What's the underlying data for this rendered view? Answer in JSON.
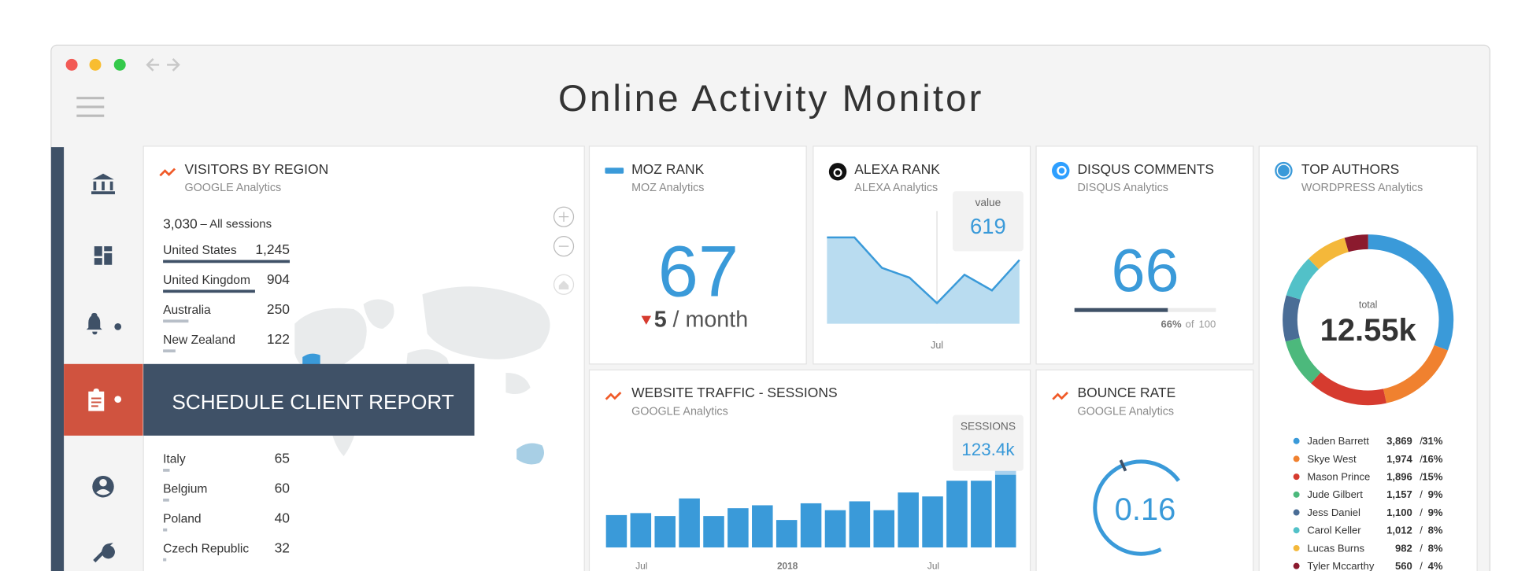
{
  "window": {
    "title": "Online Activity Monitor"
  },
  "sidebar": {
    "active_item": "SCHEDULE CLIENT REPORT"
  },
  "visitors_by_region": {
    "title": "VISITORS BY REGION",
    "source": "GOOGLE Analytics",
    "total": 3030,
    "total_label": "3,030",
    "total_caption": "– All sessions",
    "regions": [
      "United States",
      "United Kingdom",
      "Australia",
      "New Zealand",
      "Italy",
      "Belgium",
      "Poland",
      "Czech Republic"
    ],
    "values": [
      1245,
      904,
      250,
      122,
      65,
      60,
      40,
      32
    ],
    "value_labels": [
      "1,245",
      "904",
      "250",
      "122",
      "65",
      "60",
      "40",
      "32"
    ]
  },
  "moz_rank": {
    "title": "MOZ RANK",
    "source": "MOZ Analytics",
    "value": 67,
    "change": 5,
    "change_unit": "/ month"
  },
  "alexa_rank": {
    "title": "ALEXA RANK",
    "source": "ALEXA Analytics",
    "tooltip_label": "value",
    "tooltip_value": 619,
    "categories": [
      null,
      null,
      null,
      null,
      "Jul",
      null,
      null,
      null
    ],
    "values": [
      954,
      954,
      799,
      749,
      619,
      764,
      684,
      839
    ]
  },
  "disqus_comments": {
    "title": "DISQUS COMMENTS",
    "source": "DISQUS Analytics",
    "value": 66,
    "progress_label": "66%",
    "of_label": "of",
    "max": 100
  },
  "website_traffic": {
    "title": "WEBSITE TRAFFIC - SESSIONS",
    "source": "GOOGLE Analytics",
    "tooltip_label": "SESSIONS",
    "tooltip_value": 123.4,
    "tooltip_value_label": "123.4k",
    "categories": [
      null,
      "Jul",
      null,
      null,
      null,
      null,
      null,
      "2018",
      null,
      null,
      null,
      null,
      null,
      "Jul",
      null,
      null,
      null
    ],
    "values": [
      50.9,
      54.0,
      49.4,
      77.1,
      49.4,
      61.7,
      66.3,
      43.2,
      69.4,
      58.6,
      72.5,
      58.6,
      86.4,
      80.2,
      104.9,
      104.9,
      123.4
    ]
  },
  "bounce_rate": {
    "title": "BOUNCE RATE",
    "source": "GOOGLE Analytics",
    "value": 0.16
  },
  "top_authors": {
    "title": "TOP AUTHORS",
    "source": "WORDPRESS Analytics",
    "total_caption": "total",
    "total": 12550,
    "total_label": "12.55k",
    "authors": [
      "Jaden Barrett",
      "Skye West",
      "Mason Prince",
      "Jude Gilbert",
      "Jess Daniel",
      "Carol Keller",
      "Lucas Burns",
      "Tyler Mccarthy"
    ],
    "colors": [
      "#3a9ad9",
      "#f0812f",
      "#d63b2f",
      "#4cb97c",
      "#4a6d96",
      "#52c1c8",
      "#f4b83a",
      "#8b1a2e"
    ],
    "values": [
      3869,
      1974,
      1896,
      1157,
      1100,
      1012,
      982,
      560
    ],
    "value_labels": [
      "3,869",
      "1,974",
      "1,896",
      "1,157",
      "1,100",
      "1,012",
      "982",
      "560"
    ],
    "percents": [
      31,
      16,
      15,
      9,
      9,
      8,
      8,
      4
    ],
    "percent_labels": [
      "31%",
      "16%",
      "15%",
      "9%",
      "9%",
      "8%",
      "8%",
      "4%"
    ],
    "separator": "/"
  }
}
